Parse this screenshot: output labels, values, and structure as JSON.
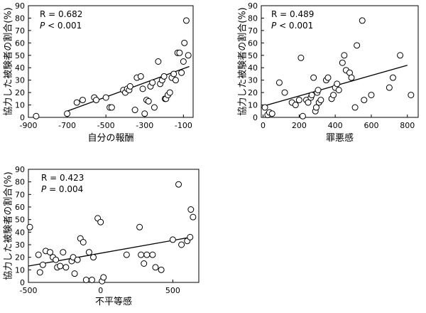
{
  "chart_data": [
    {
      "type": "scatter",
      "xlabel": "自分の報酬",
      "ylabel": "協力した被験者の割合(%)",
      "xlim": [
        -900,
        -50
      ],
      "ylim": [
        0,
        90
      ],
      "xticks": [
        -900,
        -700,
        -500,
        -300,
        -100
      ],
      "yticks": [
        0,
        10,
        20,
        30,
        40,
        50,
        60,
        70,
        80,
        90
      ],
      "stats": {
        "r_text": "R = 0.682",
        "p_prefix": "P",
        "p_rest": " < 0.001"
      },
      "regression": {
        "x": [
          -700,
          -70
        ],
        "y": [
          5,
          41
        ]
      },
      "series": [
        {
          "points": [
            [
              -860,
              1
            ],
            [
              -700,
              3
            ],
            [
              -650,
              12
            ],
            [
              -620,
              14
            ],
            [
              -560,
              16
            ],
            [
              -550,
              14
            ],
            [
              -500,
              16
            ],
            [
              -480,
              8
            ],
            [
              -470,
              8
            ],
            [
              -410,
              22
            ],
            [
              -400,
              20
            ],
            [
              -390,
              23
            ],
            [
              -380,
              22
            ],
            [
              -375,
              25
            ],
            [
              -350,
              6
            ],
            [
              -340,
              32
            ],
            [
              -320,
              33
            ],
            [
              -310,
              23
            ],
            [
              -300,
              3
            ],
            [
              -290,
              14
            ],
            [
              -280,
              13
            ],
            [
              -270,
              25
            ],
            [
              -260,
              28
            ],
            [
              -250,
              8
            ],
            [
              -230,
              45
            ],
            [
              -220,
              27
            ],
            [
              -210,
              30
            ],
            [
              -200,
              33
            ],
            [
              -195,
              15
            ],
            [
              -190,
              15
            ],
            [
              -180,
              18
            ],
            [
              -170,
              20
            ],
            [
              -160,
              32
            ],
            [
              -150,
              35
            ],
            [
              -140,
              30
            ],
            [
              -130,
              52
            ],
            [
              -120,
              52
            ],
            [
              -110,
              36
            ],
            [
              -100,
              45
            ],
            [
              -95,
              60
            ],
            [
              -85,
              78
            ],
            [
              -75,
              50
            ]
          ]
        }
      ]
    },
    {
      "type": "scatter",
      "xlabel": "罪悪感",
      "ylabel": "協力した被験者の割合(%)",
      "xlim": [
        -10,
        860
      ],
      "ylim": [
        0,
        90
      ],
      "xticks": [
        0,
        200,
        400,
        600,
        800
      ],
      "yticks": [
        0,
        10,
        20,
        30,
        40,
        50,
        60,
        70,
        80,
        90
      ],
      "stats": {
        "r_text": "R = 0.489",
        "p_prefix": "P",
        "p_rest": " < 0.001"
      },
      "regression": {
        "x": [
          0,
          800
        ],
        "y": [
          9,
          42
        ]
      },
      "series": [
        {
          "points": [
            [
              10,
              8
            ],
            [
              25,
              2
            ],
            [
              35,
              4
            ],
            [
              50,
              3
            ],
            [
              90,
              28
            ],
            [
              120,
              20
            ],
            [
              160,
              12
            ],
            [
              180,
              10
            ],
            [
              200,
              14
            ],
            [
              210,
              48
            ],
            [
              220,
              1
            ],
            [
              240,
              14
            ],
            [
              250,
              12
            ],
            [
              265,
              16
            ],
            [
              270,
              18
            ],
            [
              280,
              32
            ],
            [
              290,
              5
            ],
            [
              295,
              8
            ],
            [
              300,
              20
            ],
            [
              305,
              22
            ],
            [
              310,
              12
            ],
            [
              320,
              14
            ],
            [
              350,
              30
            ],
            [
              360,
              32
            ],
            [
              380,
              15
            ],
            [
              390,
              18
            ],
            [
              400,
              24
            ],
            [
              410,
              27
            ],
            [
              420,
              22
            ],
            [
              440,
              44
            ],
            [
              450,
              50
            ],
            [
              460,
              38
            ],
            [
              480,
              36
            ],
            [
              490,
              32
            ],
            [
              510,
              8
            ],
            [
              520,
              58
            ],
            [
              550,
              78
            ],
            [
              560,
              14
            ],
            [
              600,
              18
            ],
            [
              700,
              24
            ],
            [
              720,
              32
            ],
            [
              760,
              50
            ],
            [
              820,
              18
            ]
          ]
        }
      ]
    },
    {
      "type": "scatter",
      "xlabel": "不平等感",
      "ylabel": "協力した被験者の割合(%)",
      "xlim": [
        -500,
        680
      ],
      "ylim": [
        0,
        90
      ],
      "xticks": [
        -500,
        0,
        500
      ],
      "yticks": [
        0,
        10,
        20,
        30,
        40,
        50,
        60,
        70,
        80,
        90
      ],
      "stats": {
        "r_text": "R = 0.423",
        "p_prefix": "P",
        "p_rest": " = 0.004"
      },
      "regression": {
        "x": [
          -500,
          625
        ],
        "y": [
          13,
          36
        ]
      },
      "series": [
        {
          "points": [
            [
              -490,
              44
            ],
            [
              -430,
              22
            ],
            [
              -420,
              8
            ],
            [
              -400,
              14
            ],
            [
              -380,
              25
            ],
            [
              -350,
              24
            ],
            [
              -330,
              20
            ],
            [
              -310,
              18
            ],
            [
              -300,
              12
            ],
            [
              -280,
              13
            ],
            [
              -260,
              24
            ],
            [
              -240,
              12
            ],
            [
              -200,
              17
            ],
            [
              -190,
              20
            ],
            [
              -180,
              7
            ],
            [
              -160,
              18
            ],
            [
              -140,
              35
            ],
            [
              -120,
              32
            ],
            [
              -100,
              2
            ],
            [
              -80,
              24
            ],
            [
              -60,
              2
            ],
            [
              -50,
              20
            ],
            [
              -20,
              51
            ],
            [
              0,
              48
            ],
            [
              10,
              1
            ],
            [
              20,
              4
            ],
            [
              180,
              22
            ],
            [
              270,
              44
            ],
            [
              280,
              22
            ],
            [
              300,
              15
            ],
            [
              320,
              22
            ],
            [
              360,
              22
            ],
            [
              380,
              12
            ],
            [
              420,
              10
            ],
            [
              500,
              34
            ],
            [
              540,
              78
            ],
            [
              560,
              30
            ],
            [
              600,
              33
            ],
            [
              620,
              36
            ],
            [
              625,
              58
            ],
            [
              640,
              52
            ]
          ]
        }
      ]
    }
  ]
}
